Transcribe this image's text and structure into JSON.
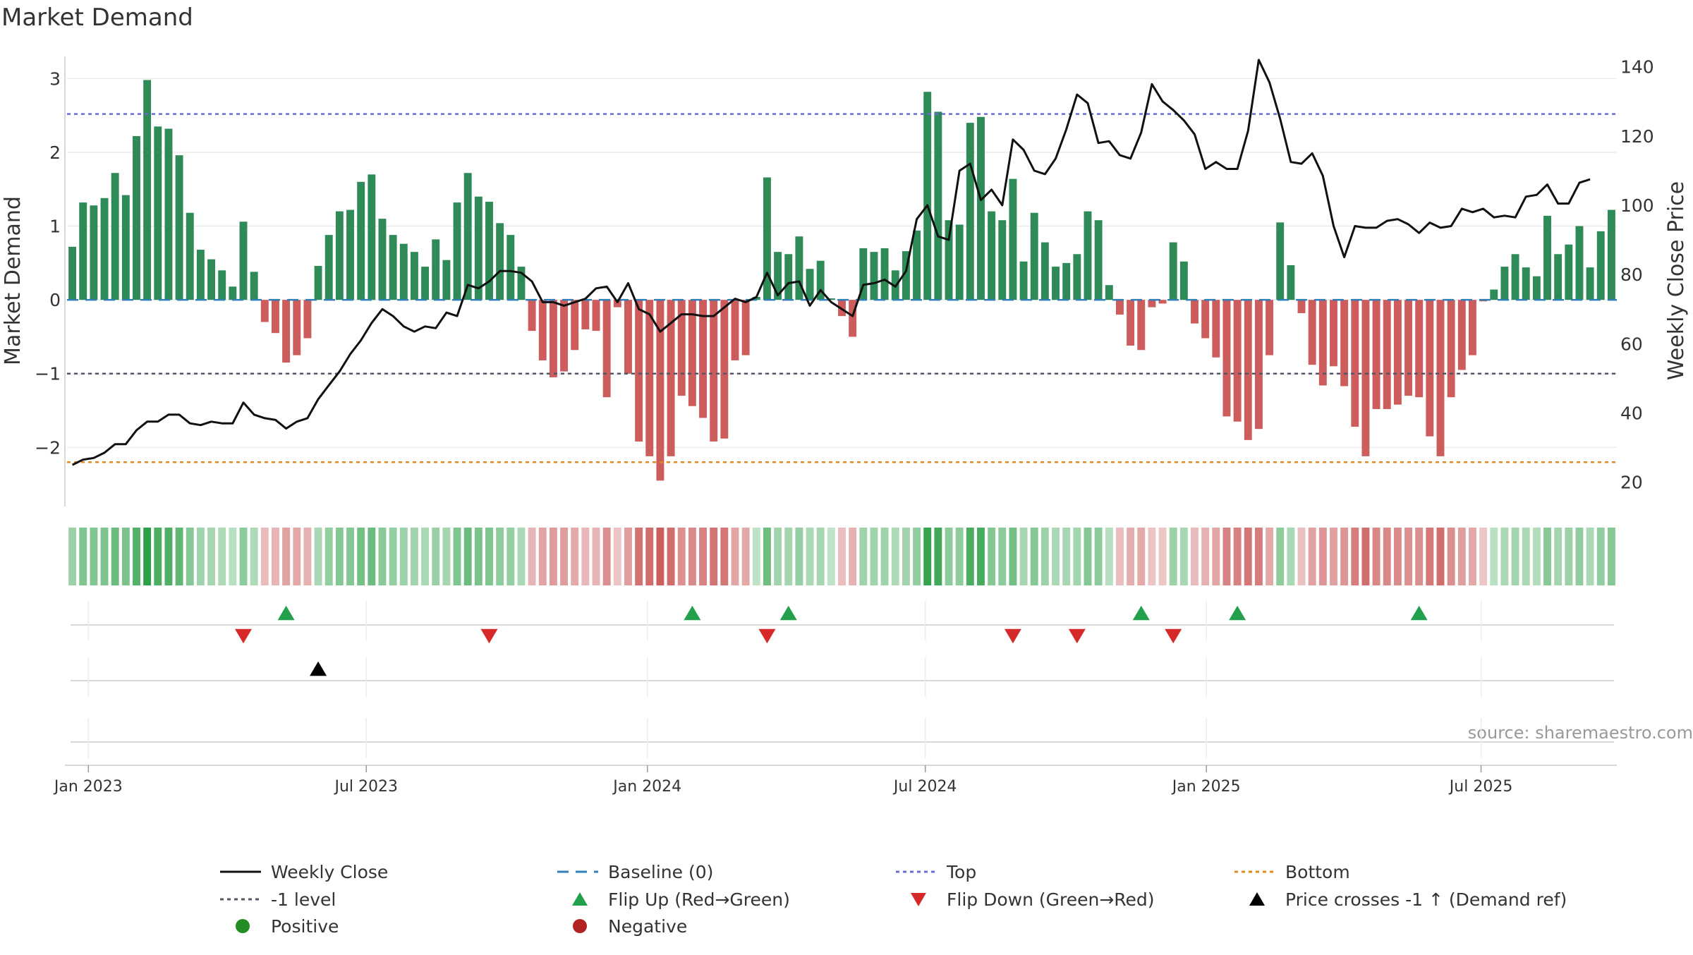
{
  "chart_data": {
    "type": "bar",
    "title": "Market Demand",
    "source": "source: sharemaestro.com",
    "ylabel_left": "Market Demand",
    "ylabel_right": "Weekly Close Price",
    "ylim_left": [
      -2.8,
      3.3
    ],
    "ylim_right": [
      13,
      143
    ],
    "yticks_left": [
      3,
      2,
      1,
      0,
      -1,
      -2
    ],
    "yticks_left_labels": [
      "3",
      "2",
      "1",
      "0",
      "−1",
      "−2"
    ],
    "yticks_right": [
      140,
      120,
      100,
      80,
      60,
      40,
      20
    ],
    "yticks_right_labels": [
      "140",
      "120",
      "100",
      "80",
      "60",
      "40",
      "20"
    ],
    "x_range_weeks": [
      -3,
      142
    ],
    "x_ticks": [
      {
        "label": "Jan 2023",
        "week": -1
      },
      {
        "label": "Jul 2023",
        "week": 25
      },
      {
        "label": "Jan 2024",
        "week": 51.3
      },
      {
        "label": "Jul 2024",
        "week": 77.3
      },
      {
        "label": "Jan 2025",
        "week": 103.6
      },
      {
        "label": "Jul 2025",
        "week": 129.3
      }
    ],
    "levels": {
      "top": 2.52,
      "bottom": -2.2,
      "minus_one": -1,
      "baseline": 0
    },
    "demand": [
      0.72,
      1.32,
      1.28,
      1.38,
      1.72,
      1.42,
      2.22,
      2.98,
      2.35,
      2.32,
      1.96,
      1.18,
      0.68,
      0.55,
      0.4,
      0.18,
      1.06,
      0.38,
      -0.3,
      -0.45,
      -0.85,
      -0.75,
      -0.52,
      0.46,
      0.88,
      1.2,
      1.22,
      1.6,
      1.7,
      1.1,
      0.88,
      0.76,
      0.65,
      0.45,
      0.82,
      0.54,
      1.32,
      1.72,
      1.4,
      1.33,
      1.04,
      0.88,
      0.45,
      -0.42,
      -0.82,
      -1.05,
      -0.97,
      -0.68,
      -0.4,
      -0.42,
      -1.32,
      -0.1,
      -1.0,
      -1.92,
      -2.12,
      -2.45,
      -2.12,
      -1.3,
      -1.44,
      -1.6,
      -1.92,
      -1.88,
      -0.82,
      -0.75,
      0.04,
      1.66,
      0.65,
      0.62,
      0.86,
      0.42,
      0.53,
      0.02,
      -0.22,
      -0.5,
      0.7,
      0.65,
      0.7,
      0.4,
      0.66,
      0.94,
      2.82,
      2.55,
      1.08,
      1.02,
      2.4,
      2.48,
      1.2,
      1.08,
      1.64,
      0.52,
      1.18,
      0.78,
      0.45,
      0.5,
      0.62,
      1.2,
      1.08,
      0.2,
      -0.2,
      -0.62,
      -0.68,
      -0.1,
      -0.05,
      0.78,
      0.52,
      -0.32,
      -0.52,
      -0.78,
      -1.58,
      -1.65,
      -1.9,
      -1.75,
      -0.75,
      1.05,
      0.47,
      -0.18,
      -0.88,
      -1.16,
      -0.9,
      -1.17,
      -1.72,
      -2.12,
      -1.48,
      -1.48,
      -1.42,
      -1.3,
      -1.32,
      -1.85,
      -2.12,
      -1.32,
      -0.95,
      -0.75,
      -0.02,
      0.14,
      0.45,
      0.62,
      0.44,
      0.32,
      1.14,
      0.62,
      0.75,
      1.0,
      0.44,
      0.93,
      1.22
    ],
    "weekly_close": [
      25,
      26.5,
      27,
      28.5,
      31,
      31,
      35,
      37.5,
      37.5,
      39.5,
      39.5,
      37,
      36.5,
      37.5,
      37,
      37,
      43,
      39.5,
      38.5,
      38,
      35.5,
      37.5,
      38.5,
      44,
      48,
      52,
      57,
      61,
      66,
      70,
      68,
      65,
      63.5,
      65,
      64.5,
      69,
      68,
      77,
      76,
      78,
      81,
      81,
      80.5,
      78,
      72,
      72,
      71,
      72,
      73,
      76,
      76.5,
      72,
      77.5,
      70,
      68.5,
      63.5,
      66,
      68.5,
      68.5,
      68,
      68,
      70.5,
      73,
      72,
      73.5,
      80.5,
      74,
      77.5,
      78,
      71,
      75.5,
      72,
      70,
      68,
      77,
      77.5,
      78.5,
      76.5,
      81,
      96,
      100,
      91,
      90,
      110,
      112,
      101.5,
      104.5,
      100,
      119,
      116,
      110,
      109,
      113.5,
      122,
      132,
      129.5,
      118,
      118.5,
      114.5,
      113.5,
      121,
      135,
      130,
      127.5,
      124.5,
      120.5,
      110.5,
      112.5,
      110.5,
      110.5,
      121.5,
      142,
      135.5,
      125,
      112.5,
      112,
      115,
      108.5,
      94,
      85,
      94,
      93.5,
      93.5,
      95.5,
      96,
      94.5,
      92,
      95,
      93.5,
      94,
      99,
      98,
      99,
      96.5,
      97,
      96.5,
      102.5,
      103,
      106,
      100.5,
      100.5,
      106.5,
      107.5
    ],
    "signals": {
      "flip_up_weeks": [
        20,
        58,
        67,
        100,
        109,
        126
      ],
      "flip_down_weeks": [
        16,
        39,
        65,
        88,
        94,
        103
      ],
      "price_cross_weeks": [
        23
      ],
      "positive_weeks": [],
      "negative_weeks": []
    },
    "legend": [
      {
        "key": "weekly-close",
        "label": "Weekly Close",
        "style": "line",
        "color": "#111111"
      },
      {
        "key": "baseline",
        "label": "Baseline (0)",
        "style": "dash",
        "color": "#2e7fb8"
      },
      {
        "key": "top",
        "label": "Top",
        "style": "dot",
        "color": "#6b6bd6"
      },
      {
        "key": "bottom",
        "label": "Bottom",
        "style": "dot",
        "color": "#e08a1e"
      },
      {
        "key": "minus-one",
        "label": "-1 level",
        "style": "dot",
        "color": "#555566"
      },
      {
        "key": "flip-up",
        "label": "Flip Up (Red→Green)",
        "style": "tri-up",
        "color": "#22a04b"
      },
      {
        "key": "flip-down",
        "label": "Flip Down (Green→Red)",
        "style": "tri-down",
        "color": "#d62a2a"
      },
      {
        "key": "price-cross",
        "label": "Price crosses -1 ↑ (Demand ref)",
        "style": "tri-up",
        "color": "#000000"
      },
      {
        "key": "positive",
        "label": "Positive",
        "style": "circle",
        "color": "#228b22"
      },
      {
        "key": "negative",
        "label": "Negative",
        "style": "circle",
        "color": "#b22222"
      }
    ],
    "colors": {
      "positive_bar": "#2e8b57",
      "negative_bar": "#cd5c5c",
      "grid": "#ebebeb",
      "axis": "#cccccc"
    }
  }
}
